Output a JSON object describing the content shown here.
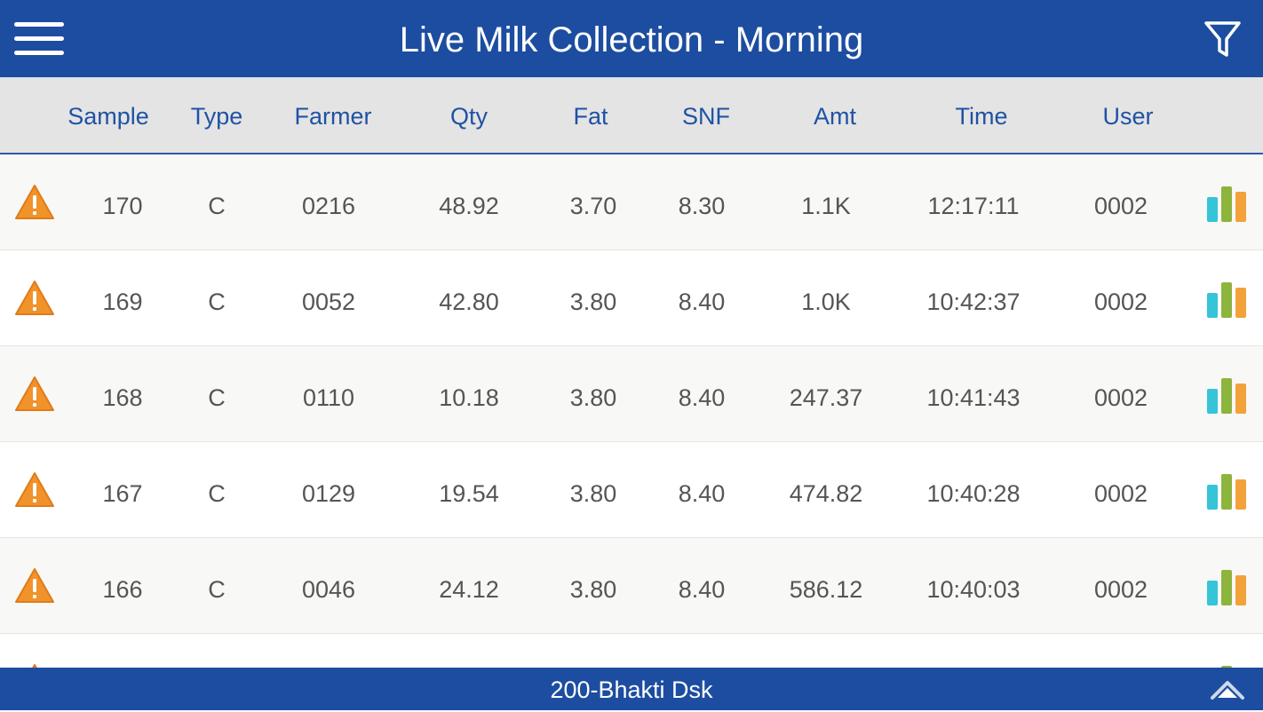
{
  "header": {
    "title": "Live Milk Collection - Morning",
    "menu_icon": "hamburger-menu-icon",
    "filter_icon": "filter-funnel-icon"
  },
  "columns": [
    "Sample",
    "Type",
    "Farmer",
    "Qty",
    "Fat",
    "SNF",
    "Amt",
    "Time",
    "User"
  ],
  "rows": [
    {
      "sample": "170",
      "type": "C",
      "farmer": "0216",
      "qty": "48.92",
      "fat": "3.70",
      "snf": "8.30",
      "amt": "1.1K",
      "time": "12:17:11",
      "user": "0002"
    },
    {
      "sample": "169",
      "type": "C",
      "farmer": "0052",
      "qty": "42.80",
      "fat": "3.80",
      "snf": "8.40",
      "amt": "1.0K",
      "time": "10:42:37",
      "user": "0002"
    },
    {
      "sample": "168",
      "type": "C",
      "farmer": "0110",
      "qty": "10.18",
      "fat": "3.80",
      "snf": "8.40",
      "amt": "247.37",
      "time": "10:41:43",
      "user": "0002"
    },
    {
      "sample": "167",
      "type": "C",
      "farmer": "0129",
      "qty": "19.54",
      "fat": "3.80",
      "snf": "8.40",
      "amt": "474.82",
      "time": "10:40:28",
      "user": "0002"
    },
    {
      "sample": "166",
      "type": "C",
      "farmer": "0046",
      "qty": "24.12",
      "fat": "3.80",
      "snf": "8.40",
      "amt": "586.12",
      "time": "10:40:03",
      "user": "0002"
    }
  ],
  "footer": {
    "label": "200-Bhakti Dsk",
    "collapse_icon": "chevron-up-icon"
  },
  "colors": {
    "primary": "#1c4da0",
    "header_text": "#1f52a5",
    "warning": "#f0932b",
    "bar_cyan": "#35c4d8",
    "bar_green": "#8db43c",
    "bar_orange": "#f3a23a"
  }
}
